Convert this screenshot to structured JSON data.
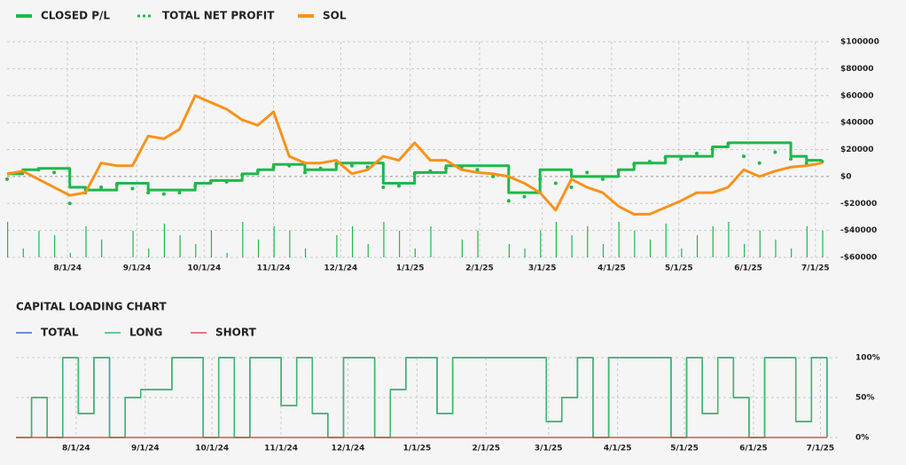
{
  "chart_data": [
    {
      "type": "line",
      "x": [
        "7/5/24",
        "7/12/24",
        "7/19/24",
        "7/26/24",
        "8/2/24",
        "8/9/24",
        "8/16/24",
        "8/23/24",
        "8/30/24",
        "9/6/24",
        "9/13/24",
        "9/20/24",
        "9/27/24",
        "10/4/24",
        "10/11/24",
        "10/18/24",
        "10/25/24",
        "11/1/24",
        "11/8/24",
        "11/15/24",
        "11/22/24",
        "11/29/24",
        "12/6/24",
        "12/13/24",
        "12/20/24",
        "12/27/24",
        "1/3/25",
        "1/10/25",
        "1/17/25",
        "1/24/25",
        "1/31/25",
        "2/7/25",
        "2/14/25",
        "2/21/25",
        "2/28/25",
        "3/7/25",
        "3/14/25",
        "3/21/25",
        "3/28/25",
        "4/4/25",
        "4/11/25",
        "4/18/25",
        "4/25/25",
        "5/2/25",
        "5/9/25",
        "5/16/25",
        "5/23/25",
        "5/30/25",
        "6/6/25",
        "6/13/25",
        "6/20/25",
        "6/27/25",
        "7/4/25"
      ],
      "series": [
        {
          "name": "CLOSED P/L",
          "color": "#1fb84a",
          "style": "step",
          "values": [
            2000,
            5000,
            6000,
            6000,
            -8000,
            -10000,
            -10000,
            -5000,
            -5000,
            -10000,
            -10000,
            -10000,
            -5000,
            -3000,
            -3000,
            2000,
            5000,
            9000,
            9000,
            5000,
            5000,
            10000,
            10000,
            10000,
            -5000,
            -5000,
            3000,
            3000,
            8000,
            8000,
            8000,
            8000,
            -12000,
            -12000,
            5000,
            5000,
            0,
            0,
            0,
            5000,
            10000,
            10000,
            15000,
            15000,
            15000,
            22000,
            25000,
            25000,
            25000,
            25000,
            15000,
            12000,
            12000
          ]
        },
        {
          "name": "TOTAL NET PROFIT",
          "color": "#1fb84a",
          "style": "dotted",
          "values": [
            -2000,
            4000,
            5000,
            3000,
            -20000,
            -12000,
            -8000,
            -6000,
            -9000,
            -12000,
            -13000,
            -12000,
            -7000,
            -4000,
            -4000,
            1000,
            4000,
            7000,
            8000,
            3000,
            6000,
            9000,
            8000,
            7000,
            -8000,
            -7000,
            2000,
            4000,
            6000,
            7000,
            5000,
            0,
            -18000,
            -15000,
            -2000,
            -5000,
            -8000,
            3000,
            -2000,
            4000,
            9000,
            11000,
            14000,
            13000,
            17000,
            20000,
            24000,
            15000,
            10000,
            18000,
            13000,
            10000,
            11000
          ]
        },
        {
          "name": "SOL",
          "color": "#f7931a",
          "style": "line",
          "values": [
            2000,
            4000,
            -2000,
            -8000,
            -14000,
            -12000,
            10000,
            8000,
            8000,
            30000,
            28000,
            35000,
            60000,
            55000,
            50000,
            42000,
            38000,
            48000,
            15000,
            10000,
            10000,
            12000,
            2000,
            5000,
            15000,
            12000,
            25000,
            12000,
            12000,
            5000,
            3000,
            2000,
            0,
            -5000,
            -12000,
            -25000,
            -2000,
            -8000,
            -12000,
            -22000,
            -28000,
            -28000,
            -23000,
            -18000,
            -12000,
            -12000,
            -8000,
            5000,
            0,
            4000,
            7000,
            8000,
            10000
          ]
        }
      ],
      "volume": {
        "color": "#1fb84a",
        "values": [
          40,
          10,
          30,
          25,
          5,
          35,
          20,
          0,
          30,
          10,
          38,
          25,
          15,
          30,
          5,
          40,
          20,
          35,
          30,
          10,
          0,
          25,
          35,
          15,
          40,
          30,
          10,
          35,
          0,
          20,
          30,
          0,
          15,
          10,
          30,
          40,
          25,
          35,
          15,
          40,
          30,
          20,
          38,
          10,
          25,
          35,
          40,
          15,
          30,
          20,
          10,
          35,
          30
        ]
      },
      "xlim": [
        "7/5/24",
        "7/7/25"
      ],
      "xticks": [
        "8/1/24",
        "9/1/24",
        "10/1/24",
        "11/1/24",
        "12/1/24",
        "1/1/25",
        "2/1/25",
        "3/1/25",
        "4/1/25",
        "5/1/25",
        "6/1/25",
        "7/1/25"
      ],
      "ylim": [
        -60000,
        100000
      ],
      "yticks": [
        {
          "value": 100000,
          "label": "$100000"
        },
        {
          "value": 80000,
          "label": "$80000"
        },
        {
          "value": 60000,
          "label": "$60000"
        },
        {
          "value": 40000,
          "label": "$40000"
        },
        {
          "value": 20000,
          "label": "$20000"
        },
        {
          "value": 0,
          "label": "$0"
        },
        {
          "value": -20000,
          "label": "-$20000"
        },
        {
          "value": -40000,
          "label": "-$40000"
        },
        {
          "value": -60000,
          "label": "-$60000"
        }
      ],
      "grid": true
    },
    {
      "type": "line",
      "title": "CAPITAL LOADING CHART",
      "x": [
        "7/5/24",
        "7/12/24",
        "7/19/24",
        "7/26/24",
        "8/2/24",
        "8/9/24",
        "8/16/24",
        "8/23/24",
        "8/30/24",
        "9/6/24",
        "9/13/24",
        "9/20/24",
        "9/27/24",
        "10/4/24",
        "10/11/24",
        "10/18/24",
        "10/25/24",
        "11/1/24",
        "11/8/24",
        "11/15/24",
        "11/22/24",
        "11/29/24",
        "12/6/24",
        "12/13/24",
        "12/20/24",
        "12/27/24",
        "1/3/25",
        "1/10/25",
        "1/17/25",
        "1/24/25",
        "1/31/25",
        "2/7/25",
        "2/14/25",
        "2/21/25",
        "2/28/25",
        "3/7/25",
        "3/14/25",
        "3/21/25",
        "3/28/25",
        "4/4/25",
        "4/11/25",
        "4/18/25",
        "4/25/25",
        "5/2/25",
        "5/9/25",
        "5/16/25",
        "5/23/25",
        "5/30/25",
        "6/6/25",
        "6/13/25",
        "6/20/25",
        "6/27/25",
        "7/4/25"
      ],
      "series": [
        {
          "name": "TOTAL",
          "color": "#3b6fc4",
          "values": [
            0,
            50,
            0,
            100,
            30,
            100,
            0,
            50,
            60,
            60,
            100,
            100,
            0,
            100,
            0,
            100,
            100,
            40,
            100,
            30,
            0,
            100,
            100,
            0,
            60,
            100,
            100,
            30,
            100,
            100,
            100,
            100,
            100,
            100,
            20,
            50,
            100,
            0,
            100,
            100,
            100,
            100,
            0,
            100,
            30,
            100,
            50,
            0,
            100,
            100,
            20,
            100,
            0
          ]
        },
        {
          "name": "LONG",
          "color": "#3cb86a",
          "values": [
            0,
            50,
            0,
            100,
            30,
            100,
            0,
            50,
            60,
            60,
            100,
            100,
            0,
            100,
            0,
            100,
            100,
            40,
            100,
            30,
            0,
            100,
            100,
            0,
            60,
            100,
            100,
            30,
            100,
            100,
            100,
            100,
            100,
            100,
            20,
            50,
            100,
            0,
            100,
            100,
            100,
            100,
            0,
            100,
            30,
            100,
            50,
            0,
            100,
            100,
            20,
            100,
            0
          ]
        },
        {
          "name": "SHORT",
          "color": "#e05050",
          "values": [
            0,
            0,
            0,
            0,
            0,
            0,
            0,
            0,
            0,
            0,
            0,
            0,
            0,
            0,
            0,
            0,
            0,
            0,
            0,
            0,
            0,
            0,
            0,
            0,
            0,
            0,
            0,
            0,
            0,
            0,
            0,
            0,
            0,
            0,
            0,
            0,
            0,
            0,
            0,
            0,
            0,
            0,
            0,
            0,
            0,
            0,
            0,
            0,
            0,
            0,
            0,
            0,
            0
          ]
        }
      ],
      "xlim": [
        "7/5/24",
        "7/10/25"
      ],
      "xticks": [
        "8/1/24",
        "9/1/24",
        "10/1/24",
        "11/1/24",
        "12/1/24",
        "1/1/25",
        "2/1/25",
        "3/1/25",
        "4/1/25",
        "5/1/25",
        "6/1/25",
        "7/1/25"
      ],
      "ylim": [
        0,
        100
      ],
      "yticks": [
        {
          "value": 100,
          "label": "100%"
        },
        {
          "value": 50,
          "label": "50%"
        },
        {
          "value": 0,
          "label": "0%"
        }
      ],
      "grid": true
    }
  ]
}
